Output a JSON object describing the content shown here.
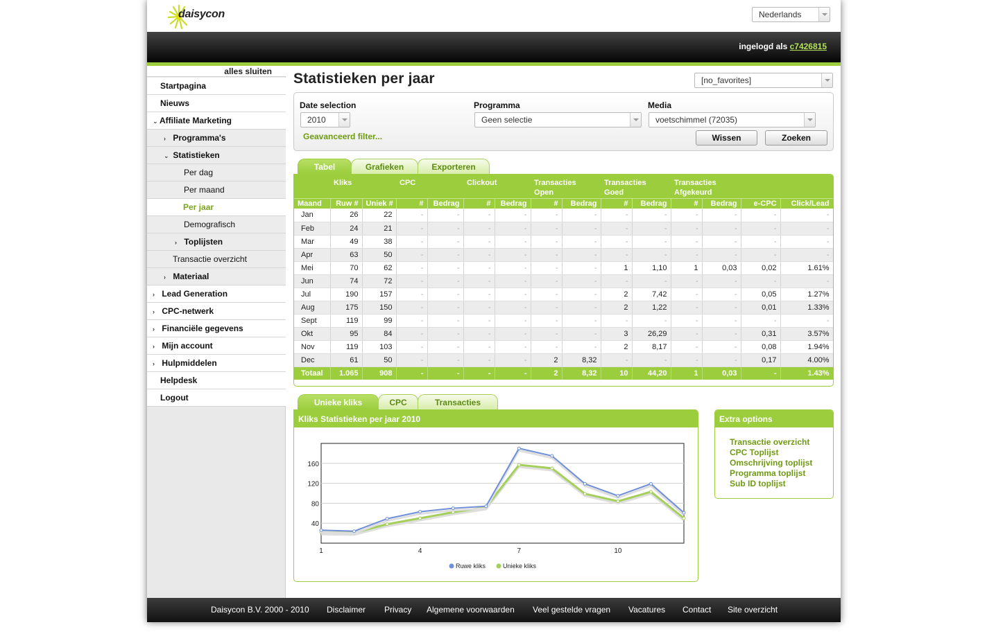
{
  "header": {
    "logo_text": "daisycon",
    "language": "Nederlands",
    "login_prefix": "ingelogd als",
    "username": "c7426815"
  },
  "sidebar": {
    "close_all": "alles sluiten",
    "items": [
      {
        "label": "Startpagina"
      },
      {
        "label": "Nieuws"
      },
      {
        "label": "Affiliate Marketing"
      },
      {
        "label": "Programma's"
      },
      {
        "label": "Statistieken"
      },
      {
        "label": "Per dag"
      },
      {
        "label": "Per maand"
      },
      {
        "label": "Per jaar"
      },
      {
        "label": "Demografisch"
      },
      {
        "label": "Toplijsten"
      },
      {
        "label": "Transactie overzicht"
      },
      {
        "label": "Materiaal"
      },
      {
        "label": "Lead Generation"
      },
      {
        "label": "CPC-netwerk"
      },
      {
        "label": "Financiële gegevens"
      },
      {
        "label": "Mijn account"
      },
      {
        "label": "Hulpmiddelen"
      },
      {
        "label": "Helpdesk"
      },
      {
        "label": "Logout"
      }
    ]
  },
  "main": {
    "title": "Statistieken per jaar",
    "favorites": "[no_favorites]",
    "filters": {
      "date_label": "Date selection",
      "date_value": "2010",
      "programma_label": "Programma",
      "programma_value": "Geen selectie",
      "media_label": "Media",
      "media_value": "voetschimmel (72035)",
      "advanced": "Geavanceerd filter...",
      "clear_button": "Wissen",
      "search_button": "Zoeken"
    },
    "table_tabs": [
      "Tabel",
      "Grafieken",
      "Exporteren"
    ],
    "table": {
      "groups": [
        "Kliks",
        "CPC",
        "Clickout",
        "Transacties Open",
        "Transacties Goed",
        "Transacties Afgekeurd"
      ],
      "subheaders": [
        "Maand",
        "Ruw #",
        "Uniek #",
        "#",
        "Bedrag",
        "#",
        "Bedrag",
        "#",
        "Bedrag",
        "#",
        "Bedrag",
        "#",
        "Bedrag",
        "e-CPC",
        "Click/Lead"
      ],
      "rows": [
        [
          "Jan",
          "26",
          "22",
          "-",
          "-",
          "-",
          "-",
          "-",
          "-",
          "-",
          "-",
          "-",
          "-",
          "-",
          "-"
        ],
        [
          "Feb",
          "24",
          "21",
          "-",
          "-",
          "-",
          "-",
          "-",
          "-",
          "-",
          "-",
          "-",
          "-",
          "-",
          "-"
        ],
        [
          "Mar",
          "49",
          "38",
          "-",
          "-",
          "-",
          "-",
          "-",
          "-",
          "-",
          "-",
          "-",
          "-",
          "-",
          "-"
        ],
        [
          "Apr",
          "63",
          "50",
          "-",
          "-",
          "-",
          "-",
          "-",
          "-",
          "-",
          "-",
          "-",
          "-",
          "-",
          "-"
        ],
        [
          "Mei",
          "70",
          "62",
          "-",
          "-",
          "-",
          "-",
          "-",
          "-",
          "1",
          "1,10",
          "1",
          "0,03",
          "0,02",
          "1.61%"
        ],
        [
          "Jun",
          "74",
          "72",
          "-",
          "-",
          "-",
          "-",
          "-",
          "-",
          "-",
          "-",
          "-",
          "-",
          "-",
          "-"
        ],
        [
          "Jul",
          "190",
          "157",
          "-",
          "-",
          "-",
          "-",
          "-",
          "-",
          "2",
          "7,42",
          "-",
          "-",
          "0,05",
          "1.27%"
        ],
        [
          "Aug",
          "175",
          "150",
          "-",
          "-",
          "-",
          "-",
          "-",
          "-",
          "2",
          "1,22",
          "-",
          "-",
          "0,01",
          "1.33%"
        ],
        [
          "Sept",
          "119",
          "99",
          "-",
          "-",
          "-",
          "-",
          "-",
          "-",
          "-",
          "-",
          "-",
          "-",
          "-",
          "-"
        ],
        [
          "Okt",
          "95",
          "84",
          "-",
          "-",
          "-",
          "-",
          "-",
          "-",
          "3",
          "26,29",
          "-",
          "-",
          "0,31",
          "3.57%"
        ],
        [
          "Nov",
          "119",
          "103",
          "-",
          "-",
          "-",
          "-",
          "-",
          "-",
          "2",
          "8,17",
          "-",
          "-",
          "0,08",
          "1.94%"
        ],
        [
          "Dec",
          "61",
          "50",
          "-",
          "-",
          "-",
          "-",
          "2",
          "8,32",
          "-",
          "-",
          "-",
          "-",
          "0,17",
          "4.00%"
        ]
      ],
      "total": [
        "Totaal",
        "1.065",
        "908",
        "-",
        "-",
        "-",
        "-",
        "2",
        "8,32",
        "10",
        "44,20",
        "1",
        "0,03",
        "-",
        "1.43%"
      ]
    },
    "chart_tabs": [
      "Unieke kliks",
      "CPC",
      "Transacties"
    ],
    "chart_title": "Kliks Statistieken per jaar 2010",
    "extra": {
      "title": "Extra options",
      "links": [
        "Transactie overzicht",
        "CPC Toplijst",
        "Omschrijving toplijst",
        "Programma toplijst",
        "Sub ID toplijst"
      ]
    }
  },
  "chart_data": {
    "type": "line",
    "title": "",
    "x": [
      1,
      2,
      3,
      4,
      5,
      6,
      7,
      8,
      9,
      10,
      11,
      12
    ],
    "xticks": [
      1,
      4,
      7,
      10
    ],
    "yticks": [
      40,
      80,
      120,
      160
    ],
    "ylim": [
      0,
      200
    ],
    "grid": true,
    "legend_position": "bottom",
    "series": [
      {
        "name": "Ruwe kliks",
        "color": "#6f8fd8",
        "values": [
          26,
          24,
          49,
          63,
          70,
          74,
          190,
          175,
          119,
          95,
          119,
          61
        ]
      },
      {
        "name": "Unieke kliks",
        "color": "#a4cf5a",
        "values": [
          22,
          21,
          38,
          50,
          62,
          72,
          157,
          150,
          99,
          84,
          103,
          50
        ]
      }
    ]
  },
  "footer": {
    "links": [
      "Daisycon B.V. 2000 - 2010",
      "Disclaimer",
      "Privacy",
      "Algemene voorwaarden",
      "Veel gestelde vragen",
      "Vacatures",
      "Contact",
      "Site overzicht"
    ]
  },
  "colors": {
    "accent": "#9bcd3c",
    "link": "#6f9a12"
  }
}
